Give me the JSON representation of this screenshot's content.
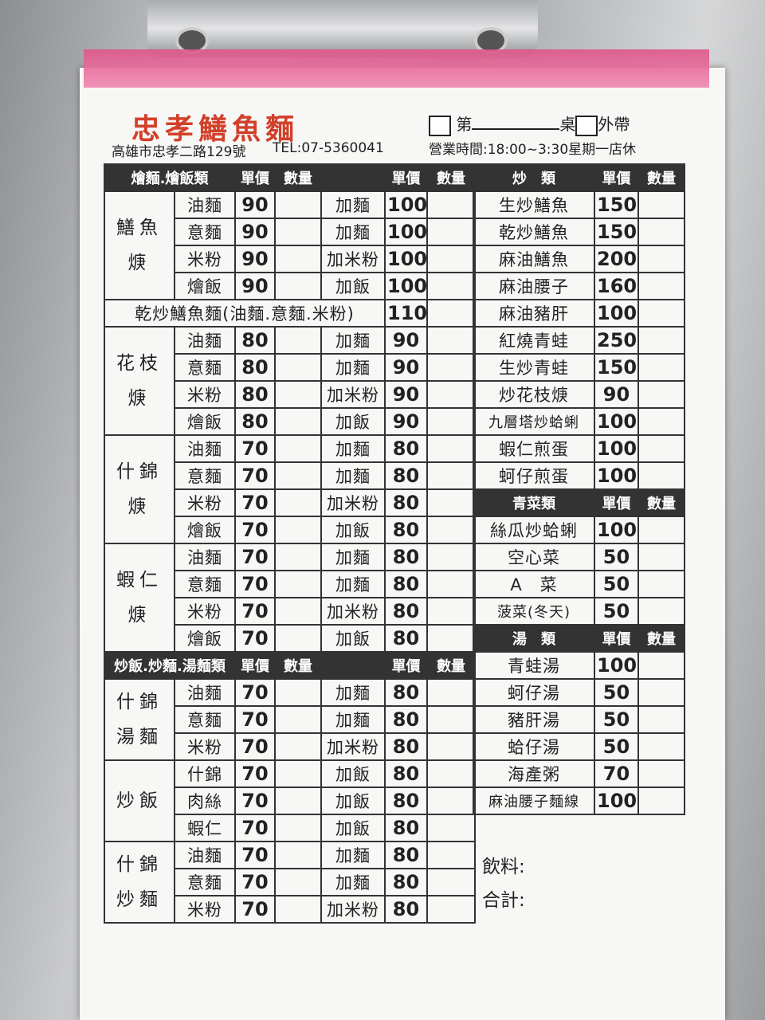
{
  "header": {
    "title": "忠孝鱔魚麵",
    "address": "高雄市忠孝二路129號",
    "tel": "TEL:07-5360041",
    "table_prefix": "第",
    "table_suffix": "桌",
    "takeout": "外帶",
    "hours": "營業時間:18:00~3:30星期一店休"
  },
  "left_sections": [
    {
      "header": [
        "燴麵.燴飯類",
        "單價",
        "數量",
        "單價",
        "數量"
      ],
      "rows": [
        {
          "name": [
            "鱔魚",
            "焿"
          ],
          "items": [
            [
              "油麵",
              90,
              "加麵",
              100
            ],
            [
              "意麵",
              90,
              "加麵",
              100
            ],
            [
              "米粉",
              90,
              "加米粉",
              100
            ],
            [
              "燴飯",
              90,
              "加飯",
              100
            ]
          ]
        },
        {
          "label": "乾炒鱔魚麵(油麵.意麵.米粉)",
          "price": 110
        },
        {
          "name": [
            "花枝",
            "焿"
          ],
          "items": [
            [
              "油麵",
              80,
              "加麵",
              90
            ],
            [
              "意麵",
              80,
              "加麵",
              90
            ],
            [
              "米粉",
              80,
              "加米粉",
              90
            ],
            [
              "燴飯",
              80,
              "加飯",
              90
            ]
          ]
        },
        {
          "name": [
            "什錦",
            "焿"
          ],
          "items": [
            [
              "油麵",
              70,
              "加麵",
              80
            ],
            [
              "意麵",
              70,
              "加麵",
              80
            ],
            [
              "米粉",
              70,
              "加米粉",
              80
            ],
            [
              "燴飯",
              70,
              "加飯",
              80
            ]
          ]
        },
        {
          "name": [
            "蝦仁",
            "焿"
          ],
          "items": [
            [
              "油麵",
              70,
              "加麵",
              80
            ],
            [
              "意麵",
              70,
              "加麵",
              80
            ],
            [
              "米粉",
              70,
              "加米粉",
              80
            ],
            [
              "燴飯",
              70,
              "加飯",
              80
            ]
          ]
        }
      ]
    },
    {
      "header": [
        "炒飯.炒麵.湯麵類",
        "單價",
        "數量",
        "單價",
        "數量"
      ],
      "rows": [
        {
          "name": [
            "什錦",
            "湯麵"
          ],
          "items": [
            [
              "油麵",
              70,
              "加麵",
              80
            ],
            [
              "意麵",
              70,
              "加麵",
              80
            ],
            [
              "米粉",
              70,
              "加米粉",
              80
            ]
          ]
        },
        {
          "name": [
            "炒飯"
          ],
          "items": [
            [
              "什錦",
              70,
              "加飯",
              80
            ],
            [
              "肉絲",
              70,
              "加飯",
              80
            ],
            [
              "蝦仁",
              70,
              "加飯",
              80
            ]
          ]
        },
        {
          "name": [
            "什錦",
            "炒麵"
          ],
          "items": [
            [
              "油麵",
              70,
              "加麵",
              80
            ],
            [
              "意麵",
              70,
              "加麵",
              80
            ],
            [
              "米粉",
              70,
              "加米粉",
              80
            ]
          ]
        }
      ]
    }
  ],
  "right_sections": [
    {
      "header": [
        "炒　類",
        "單價",
        "數量"
      ],
      "items": [
        [
          "生炒鱔魚",
          150
        ],
        [
          "乾炒鱔魚",
          150
        ],
        [
          "麻油鱔魚",
          200
        ],
        [
          "麻油腰子",
          160
        ],
        [
          "麻油豬肝",
          100
        ],
        [
          "紅燒青蛙",
          250
        ],
        [
          "生炒青蛙",
          150
        ],
        [
          "炒花枝焿",
          90
        ],
        [
          "九層塔炒蛤蜊",
          100
        ],
        [
          "蝦仁煎蛋",
          100
        ],
        [
          "蚵仔煎蛋",
          100
        ]
      ]
    },
    {
      "header": [
        "青菜類",
        "單價",
        "數量"
      ],
      "items": [
        [
          "絲瓜炒蛤蜊",
          100
        ],
        [
          "空心菜",
          50
        ],
        [
          "A　菜",
          50
        ],
        [
          "菠菜(冬天)",
          50
        ]
      ]
    },
    {
      "header": [
        "湯　類",
        "單價",
        "數量"
      ],
      "items": [
        [
          "青蛙湯",
          100
        ],
        [
          "蚵仔湯",
          50
        ],
        [
          "豬肝湯",
          50
        ],
        [
          "蛤仔湯",
          50
        ],
        [
          "海產粥",
          70
        ],
        [
          "麻油腰子麵線",
          100
        ]
      ]
    }
  ],
  "footer": {
    "drinks": "飲料:",
    "total": "合計:"
  }
}
